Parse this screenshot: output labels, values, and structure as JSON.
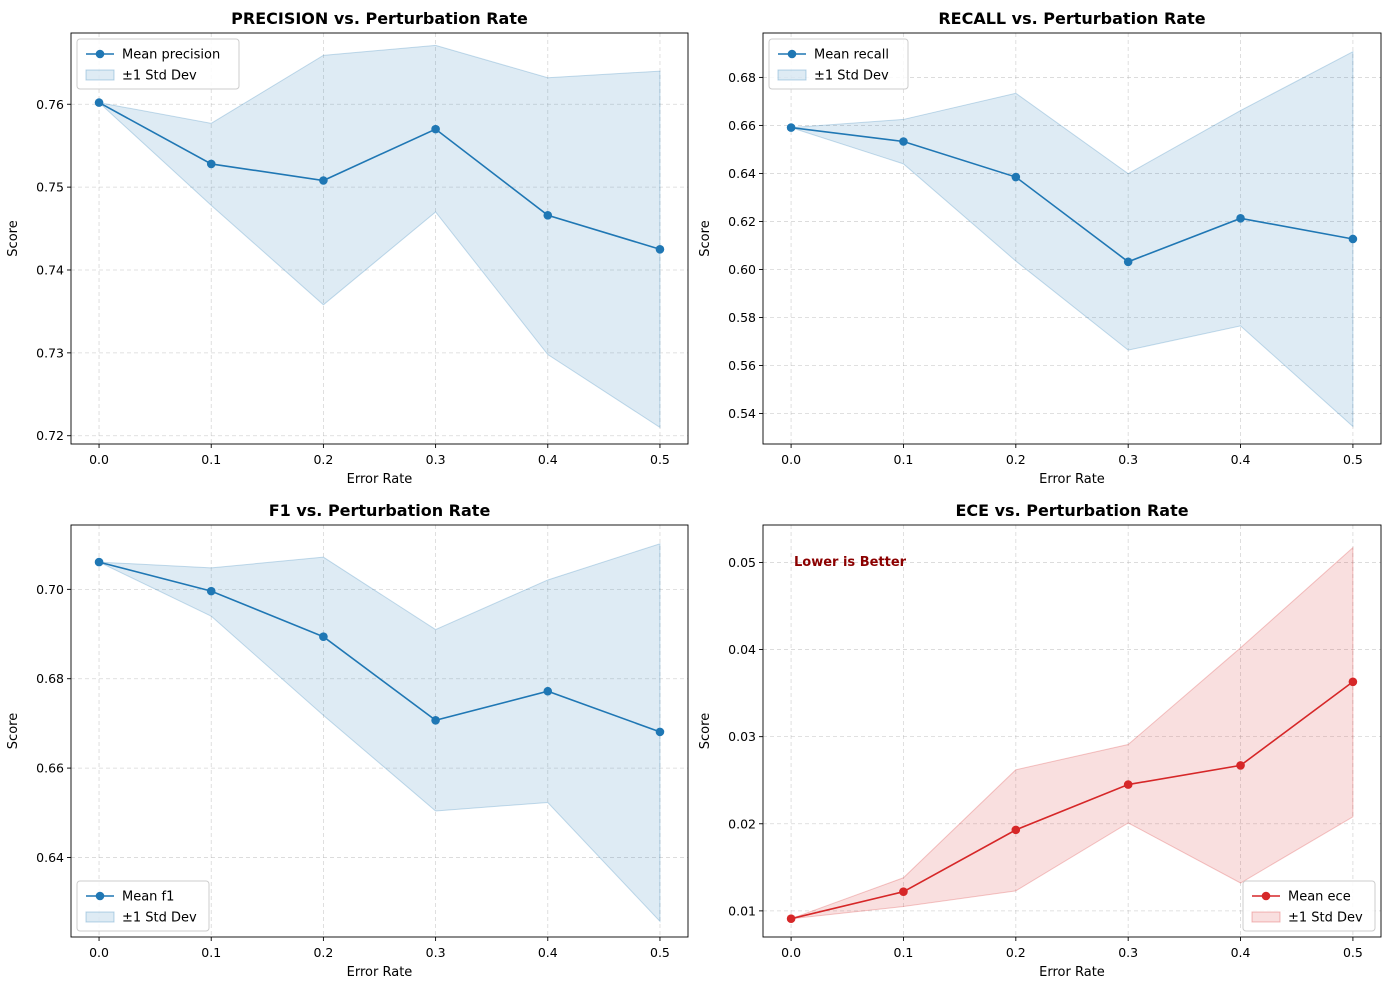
{
  "chart_data": [
    {
      "type": "line",
      "title": "PRECISION vs. Perturbation Rate",
      "xlabel": "Error Rate",
      "ylabel": "Score",
      "x": [
        0.0,
        0.1,
        0.2,
        0.3,
        0.4,
        0.5
      ],
      "xticks": [
        "0.0",
        "0.1",
        "0.2",
        "0.3",
        "0.4",
        "0.5"
      ],
      "xlim": [
        -0.025,
        0.525
      ],
      "ylim": [
        0.719,
        0.7686
      ],
      "yticks": [
        0.72,
        0.73,
        0.74,
        0.75,
        0.76
      ],
      "yticklabels": [
        "0.72",
        "0.73",
        "0.74",
        "0.75",
        "0.76"
      ],
      "grid": true,
      "legend_position": "upper left",
      "color": "#1f77b4",
      "series": [
        {
          "name": "Mean precision",
          "kind": "line",
          "values": [
            0.7602,
            0.7528,
            0.7508,
            0.757,
            0.7466,
            0.7425
          ]
        },
        {
          "name": "±1 Std Dev",
          "kind": "band",
          "lower": [
            0.7602,
            0.7478,
            0.7358,
            0.747,
            0.7298,
            0.721
          ],
          "upper": [
            0.7602,
            0.7577,
            0.7659,
            0.7671,
            0.7632,
            0.764
          ]
        }
      ]
    },
    {
      "type": "line",
      "title": "RECALL vs. Perturbation Rate",
      "xlabel": "Error Rate",
      "ylabel": "Score",
      "x": [
        0.0,
        0.1,
        0.2,
        0.3,
        0.4,
        0.5
      ],
      "xticks": [
        "0.0",
        "0.1",
        "0.2",
        "0.3",
        "0.4",
        "0.5"
      ],
      "xlim": [
        -0.025,
        0.525
      ],
      "ylim": [
        0.5273,
        0.6985
      ],
      "yticks": [
        0.54,
        0.56,
        0.58,
        0.6,
        0.62,
        0.64,
        0.66,
        0.68
      ],
      "yticklabels": [
        "0.54",
        "0.56",
        "0.58",
        "0.60",
        "0.62",
        "0.64",
        "0.66",
        "0.68"
      ],
      "grid": true,
      "legend_position": "upper left",
      "color": "#1f77b4",
      "series": [
        {
          "name": "Mean recall",
          "kind": "line",
          "values": [
            0.6591,
            0.6533,
            0.6385,
            0.6032,
            0.6213,
            0.6127
          ]
        },
        {
          "name": "±1 Std Dev",
          "kind": "band",
          "lower": [
            0.6591,
            0.644,
            0.6035,
            0.5664,
            0.5765,
            0.5346
          ],
          "upper": [
            0.6591,
            0.6625,
            0.6734,
            0.6399,
            0.6662,
            0.6907
          ]
        }
      ]
    },
    {
      "type": "line",
      "title": "F1 vs. Perturbation Rate",
      "xlabel": "Error Rate",
      "ylabel": "Score",
      "x": [
        0.0,
        0.1,
        0.2,
        0.3,
        0.4,
        0.5
      ],
      "xticks": [
        "0.0",
        "0.1",
        "0.2",
        "0.3",
        "0.4",
        "0.5"
      ],
      "xlim": [
        -0.025,
        0.525
      ],
      "ylim": [
        0.6222,
        0.7144
      ],
      "yticks": [
        0.64,
        0.66,
        0.68,
        0.7
      ],
      "yticklabels": [
        "0.64",
        "0.66",
        "0.68",
        "0.70"
      ],
      "grid": true,
      "legend_position": "lower left",
      "color": "#1f77b4",
      "series": [
        {
          "name": "Mean f1",
          "kind": "line",
          "values": [
            0.7061,
            0.6996,
            0.6894,
            0.6707,
            0.6772,
            0.6681
          ]
        },
        {
          "name": "±1 Std Dev",
          "kind": "band",
          "lower": [
            0.7061,
            0.694,
            0.6718,
            0.6504,
            0.6523,
            0.6257
          ],
          "upper": [
            0.7061,
            0.7048,
            0.7072,
            0.691,
            0.7021,
            0.7102
          ]
        }
      ]
    },
    {
      "type": "line",
      "title": "ECE vs. Perturbation Rate",
      "xlabel": "Error Rate",
      "ylabel": "Score",
      "x": [
        0.0,
        0.1,
        0.2,
        0.3,
        0.4,
        0.5
      ],
      "xticks": [
        "0.0",
        "0.1",
        "0.2",
        "0.3",
        "0.4",
        "0.5"
      ],
      "xlim": [
        -0.025,
        0.525
      ],
      "ylim": [
        0.007,
        0.0543
      ],
      "yticks": [
        0.01,
        0.02,
        0.03,
        0.04,
        0.05
      ],
      "yticklabels": [
        "0.01",
        "0.02",
        "0.03",
        "0.04",
        "0.05"
      ],
      "grid": true,
      "legend_position": "lower right",
      "color": "#d62728",
      "annotation": {
        "text": "Lower is Better",
        "color": "#8b0000"
      },
      "series": [
        {
          "name": "Mean ece",
          "kind": "line",
          "values": [
            0.0091,
            0.0122,
            0.0193,
            0.0245,
            0.0267,
            0.0363
          ]
        },
        {
          "name": "±1 Std Dev",
          "kind": "band",
          "lower": [
            0.0091,
            0.0105,
            0.0123,
            0.0201,
            0.0132,
            0.0208
          ],
          "upper": [
            0.0091,
            0.0138,
            0.0262,
            0.0291,
            0.0402,
            0.0517
          ]
        }
      ]
    }
  ]
}
